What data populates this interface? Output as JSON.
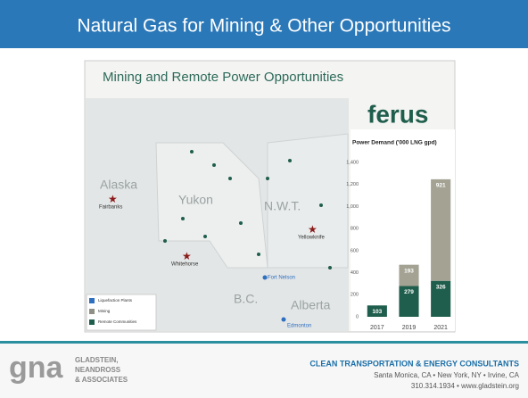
{
  "slide_title": "Natural Gas for Mining & Other Opportunities",
  "map": {
    "title": "Mining and Remote Power Opportunities",
    "logo": "ferus",
    "places": [
      "Alaska",
      "Fairbanks",
      "Yukon",
      "Whitehorse",
      "N.W.T.",
      "Yellowknife",
      "Fort Nelson",
      "B.C.",
      "Alberta",
      "Edmonton"
    ],
    "legend": [
      {
        "label": "Liquefaction Plants",
        "color": "#2e6fc0"
      },
      {
        "label": "Mining",
        "color": "#8f8f86"
      },
      {
        "label": "Remote Communities",
        "color": "#1f5e4c"
      }
    ]
  },
  "chart_data": {
    "type": "stacked_bar",
    "title": "Power Demand ('000 LNG gpd)",
    "categories": [
      "2017",
      "2019",
      "2021"
    ],
    "series": [
      {
        "name": "Remote Communities",
        "color": "#1f5e4c",
        "values": [
          103,
          279,
          326
        ]
      },
      {
        "name": "Mining",
        "color": "#a3a293",
        "values": [
          null,
          193,
          921
        ]
      }
    ],
    "ylim": [
      0,
      1400
    ],
    "yticks": [
      0,
      200,
      400,
      600,
      800,
      {
        "value": 1000,
        "label": "1,000"
      },
      {
        "value": 1200,
        "label": "1,200"
      },
      {
        "value": 1400,
        "label": "1,400"
      }
    ]
  },
  "footer": {
    "logo": "gna",
    "company": [
      "GLADSTEIN,",
      "NEANDROSS",
      "& ASSOCIATES"
    ],
    "tagline": "CLEAN TRANSPORTATION & ENERGY CONSULTANTS",
    "offices": "Santa Monica, CA • New York, NY • Irvine, CA",
    "contact": "310.314.1934 • www.gladstein.org"
  }
}
